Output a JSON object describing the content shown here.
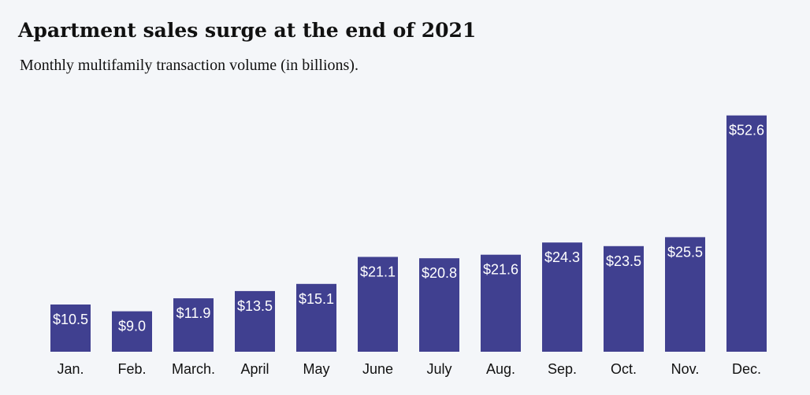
{
  "title": "Apartment sales surge at the end of 2021",
  "subtitle": "Monthly multifamily transaction volume (in billions).",
  "colors": {
    "bar": "#404090",
    "background": "#f4f6f9"
  },
  "chart_data": {
    "type": "bar",
    "title": "Apartment sales surge at the end of 2021",
    "subtitle": "Monthly multifamily transaction volume (in billions).",
    "xlabel": "",
    "ylabel": "",
    "categories": [
      "Jan.",
      "Feb.",
      "March.",
      "April",
      "May",
      "June",
      "July",
      "Aug.",
      "Sep.",
      "Oct.",
      "Nov.",
      "Dec."
    ],
    "values": [
      10.5,
      9.0,
      11.9,
      13.5,
      15.1,
      21.1,
      20.8,
      21.6,
      24.3,
      23.5,
      25.5,
      52.6
    ],
    "data_labels": [
      "$10.5",
      "$9.0",
      "$11.9",
      "$13.5",
      "$15.1",
      "$21.1",
      "$20.8",
      "$21.6",
      "$24.3",
      "$23.5",
      "$25.5",
      "$52.6"
    ],
    "grid": false,
    "legend": "none"
  }
}
